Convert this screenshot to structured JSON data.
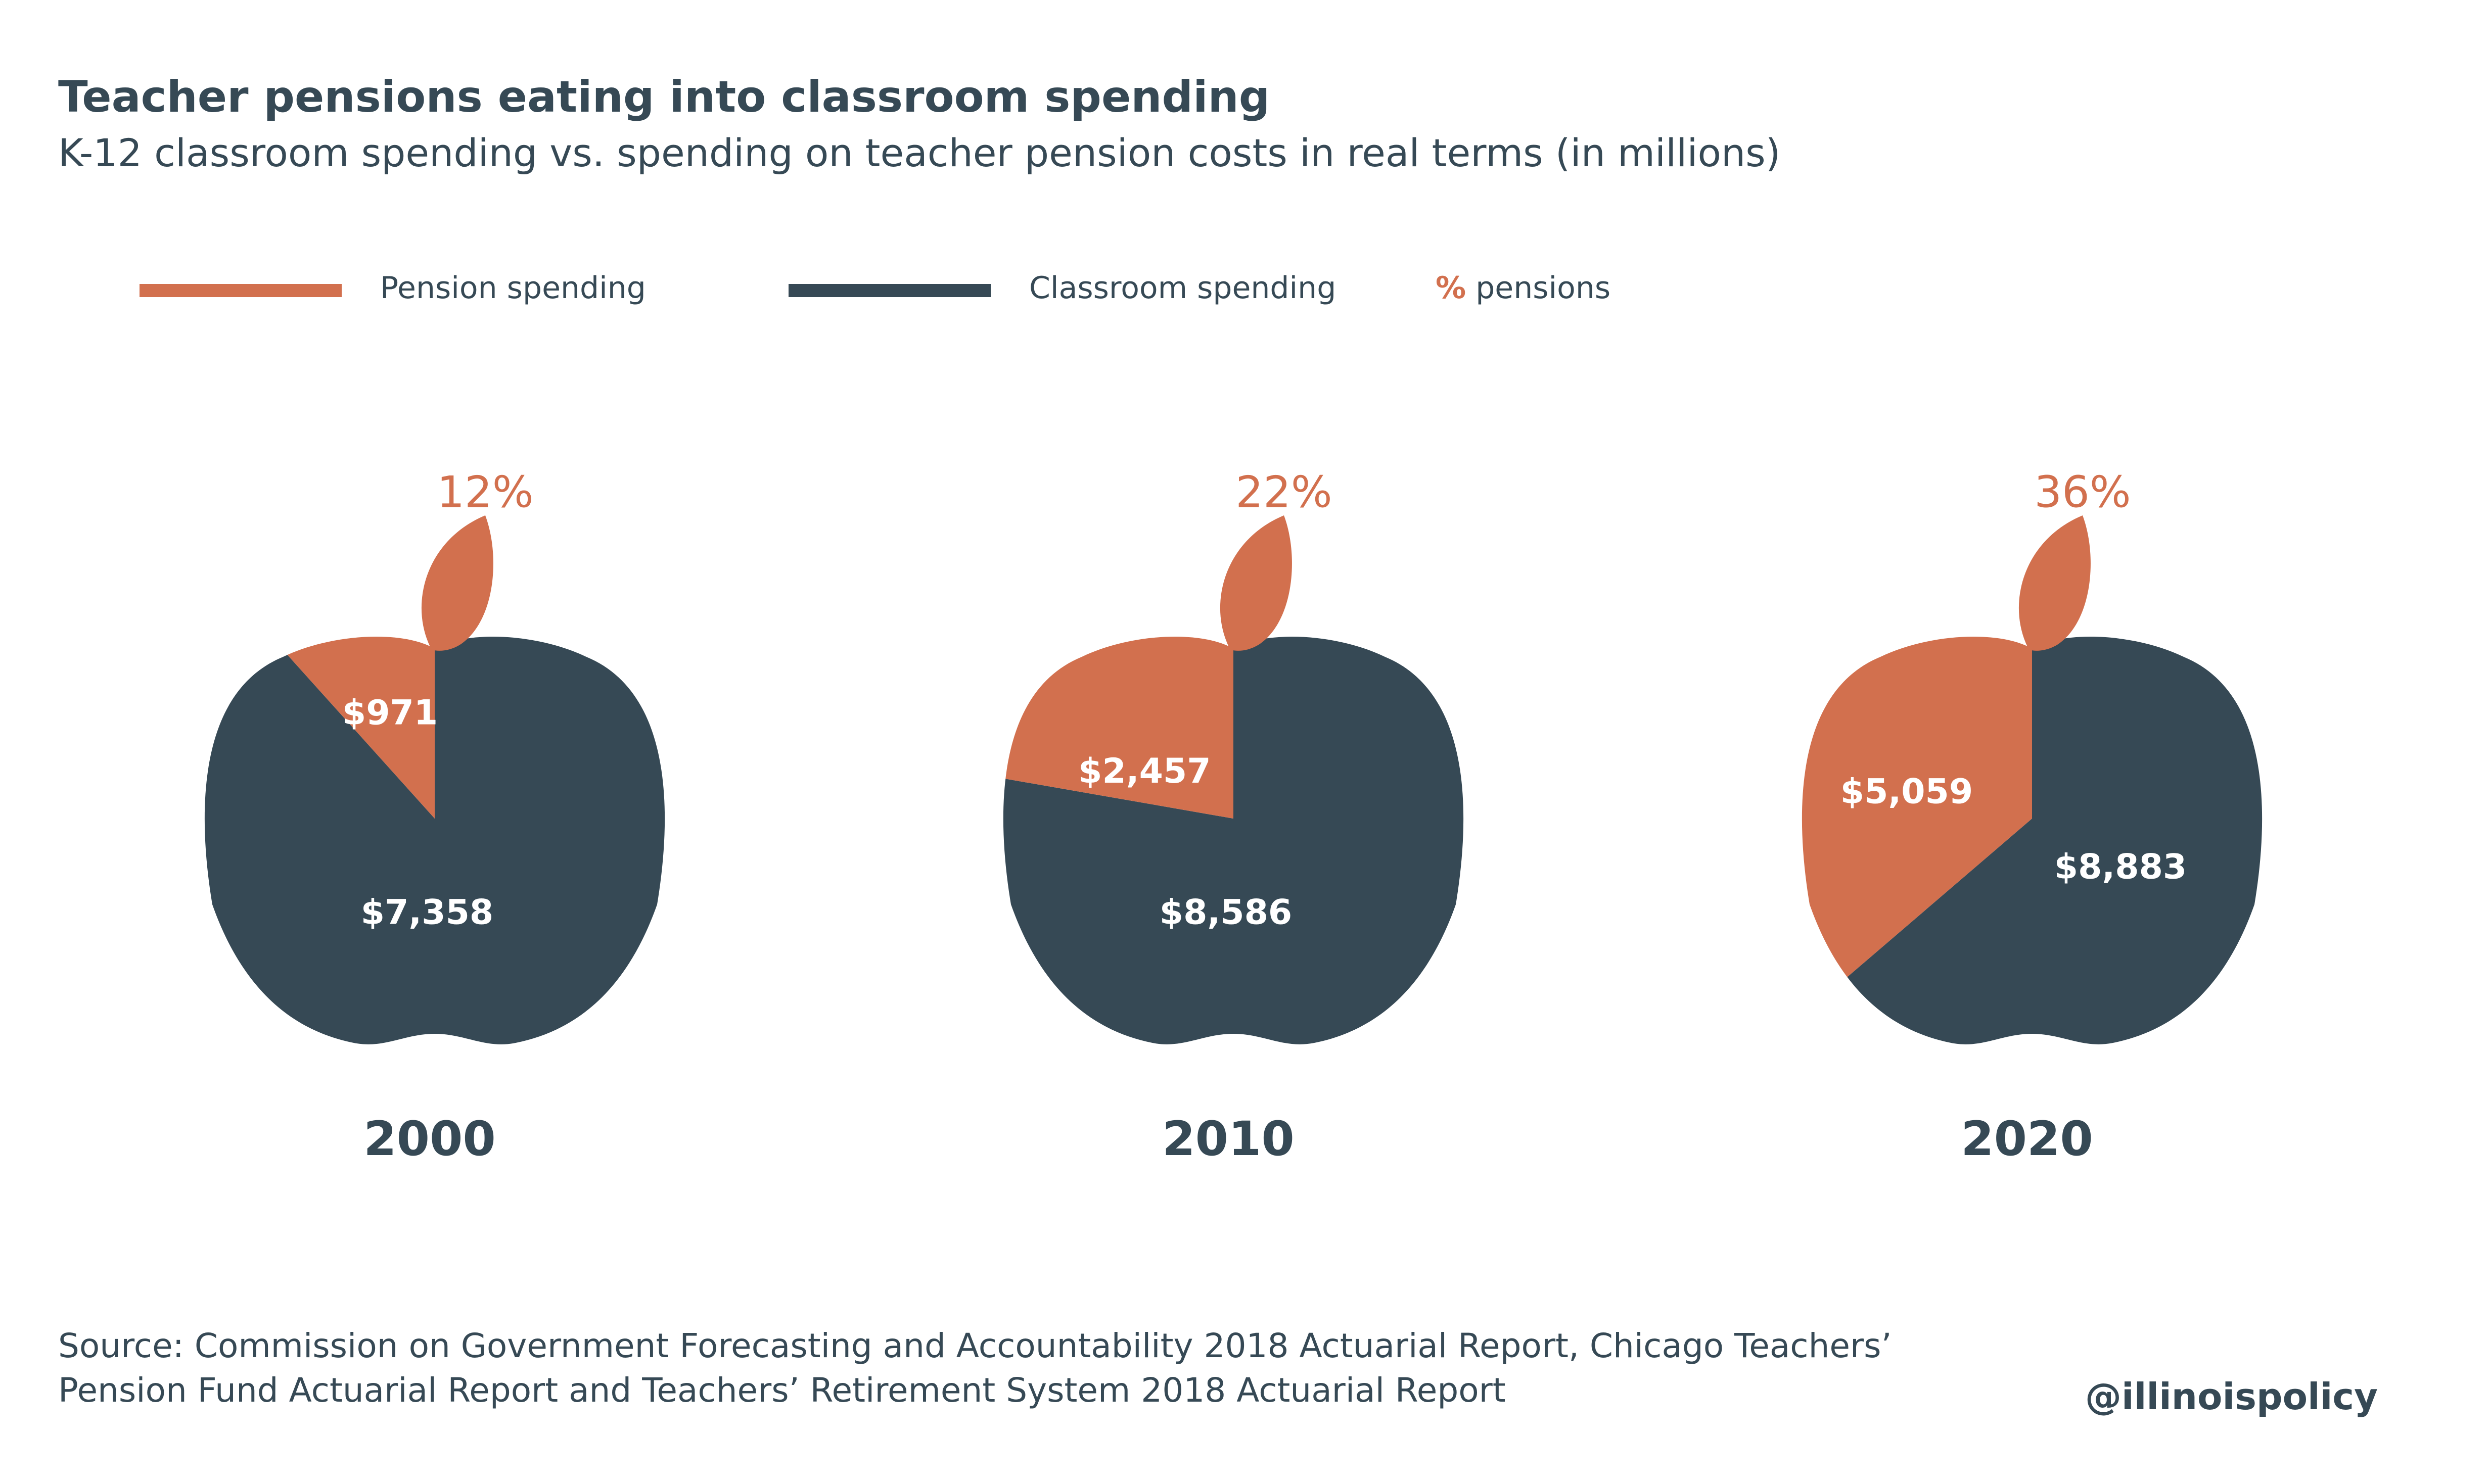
{
  "header": {
    "title": "Teacher pensions eating into classroom spending",
    "subtitle": "K-12 classroom spending vs. spending on teacher pension costs in real terms (in millions)"
  },
  "legend": {
    "pension_label": "Pension spending",
    "classroom_label": "Classroom spending",
    "pct_symbol": "%",
    "pct_label": " pensions"
  },
  "colors": {
    "pension": "#d2704e",
    "classroom": "#364955",
    "text": "#364955"
  },
  "chart_data": {
    "type": "pie",
    "title": "Teacher pensions eating into classroom spending",
    "subtitle": "K-12 classroom spending vs. spending on teacher pension costs in real terms (in millions)",
    "series_names": [
      "Pension spending",
      "Classroom spending"
    ],
    "categories": [
      "2000",
      "2010",
      "2020"
    ],
    "pies": [
      {
        "year": "2000",
        "pension": 971,
        "classroom": 7358,
        "pension_label": "$971",
        "classroom_label": "$7,358",
        "pct_label": "12%"
      },
      {
        "year": "2010",
        "pension": 2457,
        "classroom": 8586,
        "pension_label": "$2,457",
        "classroom_label": "$8,586",
        "pct_label": "22%"
      },
      {
        "year": "2020",
        "pension": 5059,
        "classroom": 8883,
        "pension_label": "$5,059",
        "classroom_label": "$8,883",
        "pct_label": "36%"
      }
    ],
    "legend_placement": "top-left"
  },
  "footer": {
    "source_line1": "Source: Commission on Government Forecasting and Accountability 2018 Actuarial Report, Chicago Teachers’",
    "source_line2": "Pension Fund Actuarial Report and Teachers’ Retirement System 2018 Actuarial Report",
    "handle": "@illinoispolicy"
  }
}
